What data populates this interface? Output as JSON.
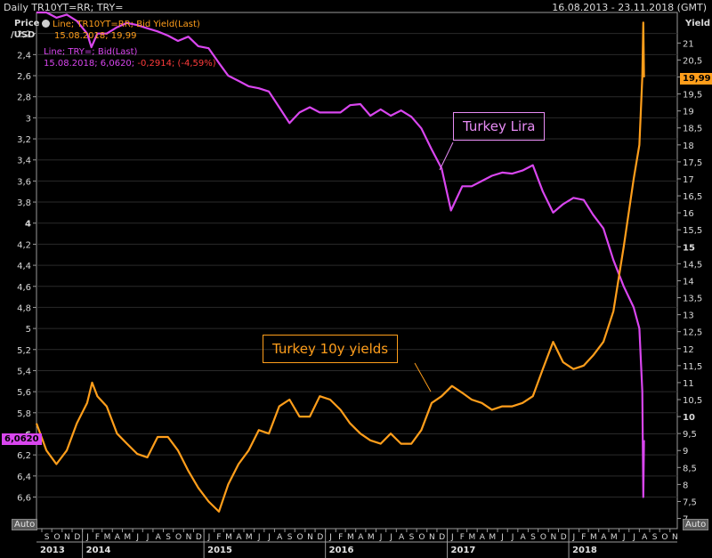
{
  "header": {
    "title": "Daily TR10YT=RR; TRY=",
    "range": "16.08.2013 - 23.11.2018 (GMT)"
  },
  "left_axis": {
    "label_line1": "Price",
    "label_line2": "/USD"
  },
  "right_axis": {
    "label": "Yield"
  },
  "legend": {
    "yield_line1": "Line; TR10YT=RR; Bid Yield(Last)",
    "yield_line2": "15.08.2018; 19,99",
    "lira_line1": "Line; TRY=; Bid(Last)",
    "lira_line2a": "15.08.2018; 6,0620; ",
    "lira_line2b": "-0,2914; (-4,59%)"
  },
  "annotations": {
    "lira": "Turkey Lira",
    "yields": "Turkey 10y yields"
  },
  "last_values": {
    "yield": "19,99",
    "lira": "6,0620"
  },
  "auto_left": "Auto",
  "auto_right": "Auto",
  "colors": {
    "lira": "#d946ef",
    "yield": "#ff9e1b",
    "grid": "#2a2a2a",
    "axis": "#9a9a9a"
  },
  "chart_data": {
    "type": "line",
    "x_range": [
      "2013-08-16",
      "2018-11-23"
    ],
    "left_axis": {
      "label": "Price /USD",
      "inverted": true,
      "range": [
        2.0,
        6.9
      ],
      "ticks": [
        "2,2",
        "2,4",
        "2,6",
        "2,8",
        "3",
        "3,2",
        "3,4",
        "3,6",
        "3,8",
        "4",
        "4,2",
        "4,4",
        "4,6",
        "4,8",
        "5",
        "5,2",
        "5,4",
        "5,6",
        "5,8",
        "6",
        "6,2",
        "6,4",
        "6,6"
      ]
    },
    "right_axis": {
      "label": "Yield",
      "range": [
        6.7,
        21.9
      ],
      "ticks": [
        "7",
        "7,5",
        "8",
        "8,5",
        "9",
        "9,5",
        "10",
        "10,5",
        "11",
        "11,5",
        "12",
        "12,5",
        "13",
        "13,5",
        "14",
        "14,5",
        "15",
        "15,5",
        "16",
        "16,5",
        "17",
        "17,5",
        "18",
        "18,5",
        "19",
        "19,5",
        "20",
        "20,5",
        "21"
      ]
    },
    "x_months": [
      "S",
      "O",
      "N",
      "D",
      "J",
      "F",
      "M",
      "A",
      "M",
      "J",
      "J",
      "A",
      "S",
      "O",
      "N",
      "D",
      "J",
      "F",
      "M",
      "A",
      "M",
      "J",
      "J",
      "A",
      "S",
      "O",
      "N",
      "D",
      "J",
      "F",
      "M",
      "A",
      "M",
      "J",
      "J",
      "A",
      "S",
      "O",
      "N",
      "D",
      "J",
      "F",
      "M",
      "A",
      "M",
      "J",
      "J",
      "A",
      "S",
      "O",
      "N",
      "D",
      "J",
      "F",
      "M",
      "A",
      "M",
      "J",
      "J",
      "A",
      "S",
      "O",
      "N"
    ],
    "x_years": [
      "2013",
      "2014",
      "2015",
      "2016",
      "2017",
      "2018"
    ],
    "series": [
      {
        "name": "Line; TRY=; Bid(Last)",
        "axis": "left",
        "points": [
          [
            "2013-08-16",
            1.95
          ],
          [
            "2013-09-15",
            2.0
          ],
          [
            "2013-10-15",
            2.05
          ],
          [
            "2013-11-15",
            2.02
          ],
          [
            "2013-12-15",
            2.08
          ],
          [
            "2014-01-15",
            2.2
          ],
          [
            "2014-01-28",
            2.33
          ],
          [
            "2014-02-15",
            2.2
          ],
          [
            "2014-03-15",
            2.2
          ],
          [
            "2014-04-15",
            2.14
          ],
          [
            "2014-05-15",
            2.1
          ],
          [
            "2014-06-15",
            2.12
          ],
          [
            "2014-07-15",
            2.15
          ],
          [
            "2014-08-15",
            2.18
          ],
          [
            "2014-09-15",
            2.22
          ],
          [
            "2014-10-15",
            2.27
          ],
          [
            "2014-11-15",
            2.23
          ],
          [
            "2014-12-15",
            2.32
          ],
          [
            "2015-01-15",
            2.34
          ],
          [
            "2015-02-15",
            2.48
          ],
          [
            "2015-03-15",
            2.6
          ],
          [
            "2015-04-15",
            2.65
          ],
          [
            "2015-05-15",
            2.7
          ],
          [
            "2015-06-15",
            2.72
          ],
          [
            "2015-07-15",
            2.75
          ],
          [
            "2015-08-15",
            2.9
          ],
          [
            "2015-09-15",
            3.05
          ],
          [
            "2015-10-15",
            2.95
          ],
          [
            "2015-11-15",
            2.9
          ],
          [
            "2015-12-15",
            2.95
          ],
          [
            "2016-01-15",
            2.95
          ],
          [
            "2016-02-15",
            2.95
          ],
          [
            "2016-03-15",
            2.88
          ],
          [
            "2016-04-15",
            2.87
          ],
          [
            "2016-05-15",
            2.98
          ],
          [
            "2016-06-15",
            2.92
          ],
          [
            "2016-07-15",
            2.98
          ],
          [
            "2016-08-15",
            2.93
          ],
          [
            "2016-09-15",
            2.99
          ],
          [
            "2016-10-15",
            3.1
          ],
          [
            "2016-11-15",
            3.3
          ],
          [
            "2016-12-15",
            3.48
          ],
          [
            "2017-01-12",
            3.88
          ],
          [
            "2017-02-15",
            3.65
          ],
          [
            "2017-03-15",
            3.65
          ],
          [
            "2017-04-15",
            3.6
          ],
          [
            "2017-05-15",
            3.55
          ],
          [
            "2017-06-15",
            3.52
          ],
          [
            "2017-07-15",
            3.53
          ],
          [
            "2017-08-15",
            3.5
          ],
          [
            "2017-09-15",
            3.45
          ],
          [
            "2017-10-15",
            3.7
          ],
          [
            "2017-11-15",
            3.9
          ],
          [
            "2017-12-15",
            3.82
          ],
          [
            "2018-01-15",
            3.76
          ],
          [
            "2018-02-15",
            3.78
          ],
          [
            "2018-03-15",
            3.92
          ],
          [
            "2018-04-15",
            4.05
          ],
          [
            "2018-05-15",
            4.35
          ],
          [
            "2018-06-15",
            4.6
          ],
          [
            "2018-07-15",
            4.8
          ],
          [
            "2018-08-01",
            5.0
          ],
          [
            "2018-08-10",
            5.6
          ],
          [
            "2018-08-13",
            6.6
          ],
          [
            "2018-08-15",
            6.06
          ]
        ]
      },
      {
        "name": "Line; TR10YT=RR; Bid Yield(Last)",
        "axis": "right",
        "points": [
          [
            "2013-08-16",
            9.8
          ],
          [
            "2013-09-15",
            9.0
          ],
          [
            "2013-10-15",
            8.6
          ],
          [
            "2013-11-15",
            9.0
          ],
          [
            "2013-12-15",
            9.8
          ],
          [
            "2014-01-15",
            10.4
          ],
          [
            "2014-01-30",
            11.0
          ],
          [
            "2014-02-15",
            10.6
          ],
          [
            "2014-03-15",
            10.3
          ],
          [
            "2014-04-15",
            9.5
          ],
          [
            "2014-05-15",
            9.2
          ],
          [
            "2014-06-15",
            8.9
          ],
          [
            "2014-07-15",
            8.8
          ],
          [
            "2014-08-15",
            9.4
          ],
          [
            "2014-09-15",
            9.4
          ],
          [
            "2014-10-15",
            9.0
          ],
          [
            "2014-11-15",
            8.4
          ],
          [
            "2014-12-15",
            7.9
          ],
          [
            "2015-01-15",
            7.5
          ],
          [
            "2015-02-15",
            7.2
          ],
          [
            "2015-03-15",
            8.0
          ],
          [
            "2015-04-15",
            8.6
          ],
          [
            "2015-05-15",
            9.0
          ],
          [
            "2015-06-15",
            9.6
          ],
          [
            "2015-07-15",
            9.5
          ],
          [
            "2015-08-15",
            10.3
          ],
          [
            "2015-09-15",
            10.5
          ],
          [
            "2015-10-15",
            10.0
          ],
          [
            "2015-11-15",
            10.0
          ],
          [
            "2015-12-15",
            10.6
          ],
          [
            "2016-01-15",
            10.5
          ],
          [
            "2016-02-15",
            10.2
          ],
          [
            "2016-03-15",
            9.8
          ],
          [
            "2016-04-15",
            9.5
          ],
          [
            "2016-05-15",
            9.3
          ],
          [
            "2016-06-15",
            9.2
          ],
          [
            "2016-07-15",
            9.5
          ],
          [
            "2016-08-15",
            9.2
          ],
          [
            "2016-09-15",
            9.2
          ],
          [
            "2016-10-15",
            9.6
          ],
          [
            "2016-11-15",
            10.4
          ],
          [
            "2016-12-15",
            10.6
          ],
          [
            "2017-01-15",
            10.9
          ],
          [
            "2017-02-15",
            10.7
          ],
          [
            "2017-03-15",
            10.5
          ],
          [
            "2017-04-15",
            10.4
          ],
          [
            "2017-05-15",
            10.2
          ],
          [
            "2017-06-15",
            10.3
          ],
          [
            "2017-07-15",
            10.3
          ],
          [
            "2017-08-15",
            10.4
          ],
          [
            "2017-09-15",
            10.6
          ],
          [
            "2017-10-15",
            11.4
          ],
          [
            "2017-11-15",
            12.2
          ],
          [
            "2017-12-15",
            11.6
          ],
          [
            "2018-01-15",
            11.4
          ],
          [
            "2018-02-15",
            11.5
          ],
          [
            "2018-03-15",
            11.8
          ],
          [
            "2018-04-15",
            12.2
          ],
          [
            "2018-05-15",
            13.1
          ],
          [
            "2018-06-15",
            15.0
          ],
          [
            "2018-07-15",
            17.0
          ],
          [
            "2018-08-01",
            18.0
          ],
          [
            "2018-08-10",
            20.0
          ],
          [
            "2018-08-13",
            21.6
          ],
          [
            "2018-08-15",
            19.99
          ]
        ]
      }
    ]
  }
}
